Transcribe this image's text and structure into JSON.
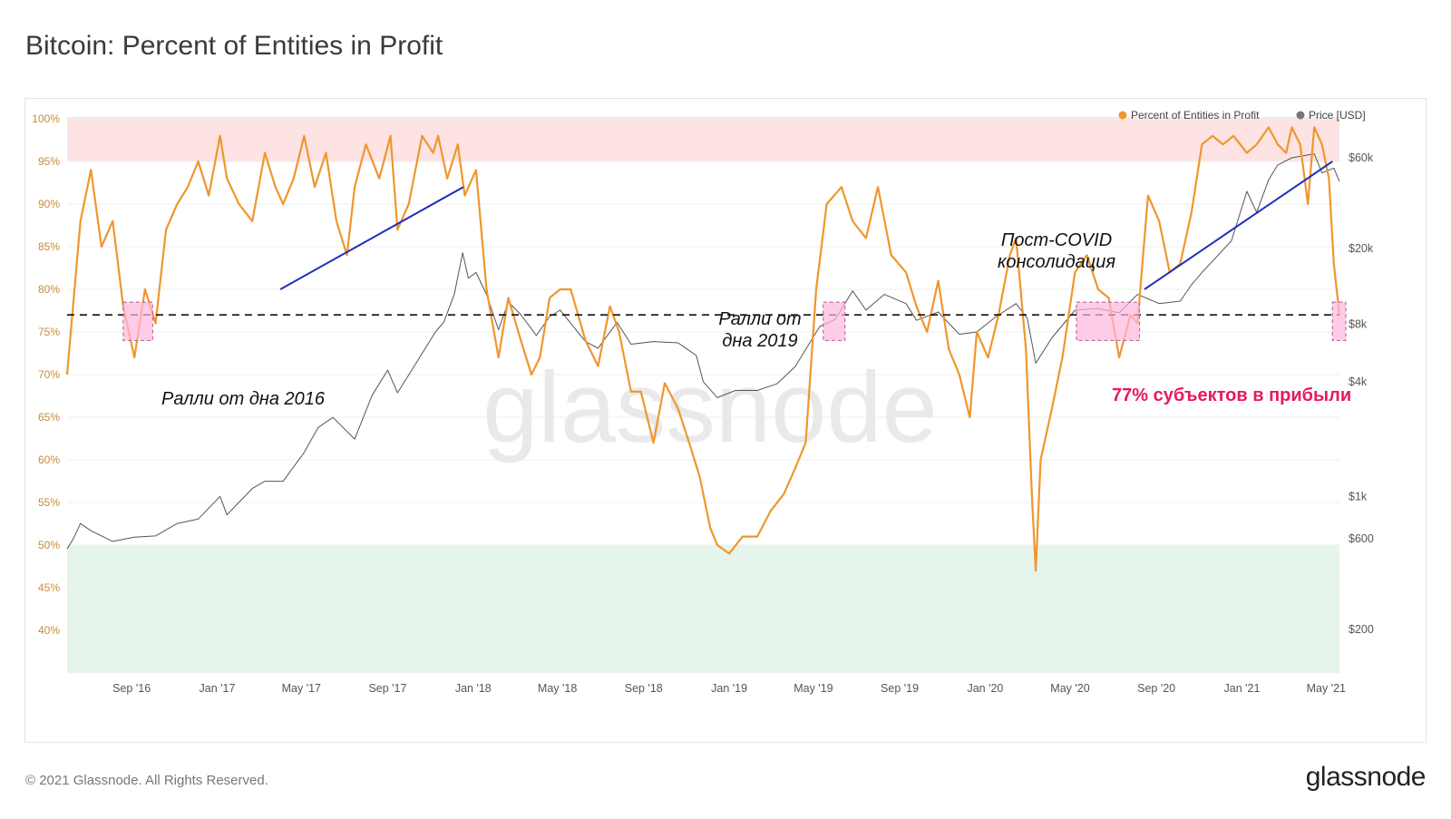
{
  "header": {
    "title": "Bitcoin: Percent of Entities in Profit"
  },
  "footer": {
    "copyright": "© 2021 Glassnode. All Rights Reserved.",
    "brand": "glassnode"
  },
  "watermark": "glassnode",
  "colors": {
    "profit_line": "#f0962d",
    "price_line": "#555555",
    "upper_zone": "#fde3e3",
    "lower_zone": "#e6f5ec",
    "trend_line": "#1f2fb8",
    "highlight_box": "#ffb6de",
    "callout_text": "#e8195a",
    "left_axis_text": "#c98a3c"
  },
  "chart_data": {
    "type": "line",
    "title": "Bitcoin: Percent of Entities in Profit",
    "legend": {
      "placement": "top-right",
      "items": [
        "Percent of Entities in Profit",
        "Price [USD]"
      ]
    },
    "x_ticks": [
      "Sep '16",
      "Jan '17",
      "May '17",
      "Sep '17",
      "Jan '18",
      "May '18",
      "Sep '18",
      "Jan '19",
      "May '19",
      "Sep '19",
      "Jan '20",
      "May '20",
      "Sep '20",
      "Jan '21",
      "May '21"
    ],
    "x_range": [
      "2016-06-01",
      "2021-05-20"
    ],
    "y_left": {
      "range": [
        40,
        100
      ],
      "ticks": [
        "40%",
        "45%",
        "50%",
        "55%",
        "60%",
        "65%",
        "70%",
        "75%",
        "80%",
        "85%",
        "90%",
        "95%",
        "100%"
      ]
    },
    "y_right": {
      "scale": "log",
      "ticks": [
        "$200",
        "$600",
        "$1k",
        "$4k",
        "$8k",
        "$20k",
        "$60k"
      ],
      "tick_values": [
        200,
        600,
        1000,
        4000,
        8000,
        20000,
        60000
      ]
    },
    "zones": {
      "upper_threshold": 95,
      "lower_threshold": 50
    },
    "reference_line": {
      "value": 77,
      "style": "dashed"
    },
    "series": [
      {
        "name": "Percent of Entities in Profit",
        "axis": "left",
        "x": [
          "2016-06-01",
          "2016-06-20",
          "2016-07-05",
          "2016-07-20",
          "2016-08-05",
          "2016-08-20",
          "2016-09-05",
          "2016-09-20",
          "2016-10-05",
          "2016-10-20",
          "2016-11-05",
          "2016-11-20",
          "2016-12-05",
          "2016-12-20",
          "2017-01-05",
          "2017-01-15",
          "2017-02-01",
          "2017-02-20",
          "2017-03-10",
          "2017-03-25",
          "2017-04-05",
          "2017-04-20",
          "2017-05-05",
          "2017-05-20",
          "2017-06-05",
          "2017-06-20",
          "2017-07-05",
          "2017-07-16",
          "2017-08-01",
          "2017-08-20",
          "2017-09-05",
          "2017-09-15",
          "2017-10-01",
          "2017-10-20",
          "2017-11-05",
          "2017-11-12",
          "2017-11-25",
          "2017-12-10",
          "2017-12-20",
          "2018-01-05",
          "2018-01-20",
          "2018-02-06",
          "2018-02-20",
          "2018-03-10",
          "2018-03-25",
          "2018-04-06",
          "2018-04-20",
          "2018-05-05",
          "2018-05-20",
          "2018-06-10",
          "2018-06-28",
          "2018-07-15",
          "2018-07-28",
          "2018-08-14",
          "2018-08-28",
          "2018-09-15",
          "2018-10-01",
          "2018-10-20",
          "2018-11-05",
          "2018-11-20",
          "2018-12-05",
          "2018-12-15",
          "2019-01-01",
          "2019-01-20",
          "2019-02-10",
          "2019-03-01",
          "2019-03-20",
          "2019-04-05",
          "2019-04-20",
          "2019-05-05",
          "2019-05-20",
          "2019-06-10",
          "2019-06-26",
          "2019-07-15",
          "2019-08-01",
          "2019-08-20",
          "2019-09-10",
          "2019-09-25",
          "2019-10-10",
          "2019-10-26",
          "2019-11-10",
          "2019-11-25",
          "2019-12-10",
          "2019-12-20",
          "2020-01-05",
          "2020-01-20",
          "2020-02-05",
          "2020-02-14",
          "2020-02-28",
          "2020-03-08",
          "2020-03-13",
          "2020-03-20",
          "2020-04-05",
          "2020-04-20",
          "2020-05-08",
          "2020-05-25",
          "2020-06-10",
          "2020-06-25",
          "2020-07-10",
          "2020-07-26",
          "2020-08-05",
          "2020-08-20",
          "2020-09-05",
          "2020-09-20",
          "2020-10-05",
          "2020-10-21",
          "2020-11-05",
          "2020-11-20",
          "2020-12-05",
          "2020-12-20",
          "2021-01-08",
          "2021-01-22",
          "2021-02-08",
          "2021-02-21",
          "2021-03-05",
          "2021-03-13",
          "2021-03-25",
          "2021-04-05",
          "2021-04-14",
          "2021-04-25",
          "2021-05-05",
          "2021-05-12",
          "2021-05-20"
        ],
        "values": [
          70,
          88,
          94,
          85,
          88,
          78,
          72,
          80,
          76,
          87,
          90,
          92,
          95,
          91,
          98,
          93,
          90,
          88,
          96,
          92,
          90,
          93,
          98,
          92,
          96,
          88,
          84,
          92,
          97,
          93,
          98,
          87,
          90,
          98,
          96,
          98,
          93,
          97,
          91,
          94,
          80,
          72,
          79,
          74,
          70,
          72,
          79,
          80,
          80,
          74,
          71,
          78,
          75,
          68,
          68,
          62,
          69,
          66,
          62,
          58,
          52,
          50,
          49,
          51,
          51,
          54,
          56,
          59,
          62,
          80,
          90,
          92,
          88,
          86,
          92,
          84,
          82,
          78,
          75,
          81,
          73,
          70,
          65,
          75,
          72,
          77,
          84,
          86,
          73,
          55,
          47,
          60,
          66,
          72,
          82,
          84,
          80,
          79,
          72,
          77,
          76,
          91,
          88,
          82,
          83,
          89,
          97,
          98,
          97,
          98,
          96,
          97,
          99,
          97,
          96,
          99,
          97,
          90,
          99,
          97,
          93,
          83,
          77
        ]
      },
      {
        "name": "Price [USD]",
        "axis": "right",
        "x": [
          "2016-06-01",
          "2016-06-10",
          "2016-06-20",
          "2016-07-05",
          "2016-08-05",
          "2016-09-05",
          "2016-10-05",
          "2016-11-05",
          "2016-12-05",
          "2017-01-05",
          "2017-01-15",
          "2017-02-20",
          "2017-03-10",
          "2017-04-05",
          "2017-05-05",
          "2017-05-25",
          "2017-06-15",
          "2017-07-16",
          "2017-08-10",
          "2017-09-01",
          "2017-09-15",
          "2017-10-10",
          "2017-11-08",
          "2017-11-20",
          "2017-12-05",
          "2017-12-17",
          "2017-12-25",
          "2018-01-05",
          "2018-01-20",
          "2018-02-06",
          "2018-02-20",
          "2018-03-10",
          "2018-04-01",
          "2018-04-20",
          "2018-05-05",
          "2018-06-10",
          "2018-06-28",
          "2018-07-25",
          "2018-08-14",
          "2018-09-15",
          "2018-10-20",
          "2018-11-15",
          "2018-11-25",
          "2018-12-15",
          "2019-01-10",
          "2019-02-10",
          "2019-03-10",
          "2019-04-05",
          "2019-05-10",
          "2019-06-01",
          "2019-06-26",
          "2019-07-15",
          "2019-08-10",
          "2019-09-10",
          "2019-09-25",
          "2019-10-26",
          "2019-11-25",
          "2019-12-20",
          "2020-01-15",
          "2020-02-14",
          "2020-03-01",
          "2020-03-13",
          "2020-04-05",
          "2020-05-08",
          "2020-06-10",
          "2020-07-10",
          "2020-08-05",
          "2020-09-05",
          "2020-10-05",
          "2020-10-21",
          "2020-11-05",
          "2020-11-25",
          "2020-12-17",
          "2021-01-08",
          "2021-01-22",
          "2021-02-08",
          "2021-02-21",
          "2021-03-13",
          "2021-04-14",
          "2021-04-25",
          "2021-05-12",
          "2021-05-20"
        ],
        "values": [
          530,
          600,
          720,
          660,
          580,
          610,
          620,
          720,
          760,
          1000,
          800,
          1100,
          1200,
          1200,
          1700,
          2300,
          2600,
          2000,
          3400,
          4600,
          3500,
          4900,
          7300,
          8200,
          11500,
          19000,
          14000,
          15000,
          11500,
          7500,
          10500,
          9000,
          7000,
          8800,
          9500,
          6500,
          6000,
          8200,
          6300,
          6500,
          6400,
          5500,
          4000,
          3300,
          3600,
          3600,
          3900,
          4800,
          7800,
          8500,
          12000,
          9500,
          11500,
          10300,
          8400,
          9300,
          7100,
          7300,
          8700,
          10300,
          8600,
          5000,
          6800,
          9500,
          9700,
          9200,
          11500,
          10300,
          10600,
          12900,
          15000,
          18000,
          22000,
          40000,
          31000,
          46000,
          55000,
          60000,
          63000,
          50000,
          53000,
          45000
        ]
      }
    ],
    "trend_lines": [
      {
        "from": [
          "2017-04-01",
          80
        ],
        "to": [
          "2017-12-18",
          92
        ]
      },
      {
        "from": [
          "2020-08-15",
          80
        ],
        "to": [
          "2021-05-10",
          95
        ]
      }
    ],
    "highlight_boxes": [
      {
        "from": "2016-08-20",
        "to": "2016-10-01",
        "y_range": [
          74,
          78.5
        ]
      },
      {
        "from": "2019-05-15",
        "to": "2019-06-15",
        "y_range": [
          74,
          78.5
        ]
      },
      {
        "from": "2020-05-10",
        "to": "2020-08-08",
        "y_range": [
          74,
          78.5
        ]
      },
      {
        "from": "2021-05-10",
        "to": "2021-06-10",
        "y_range": [
          74,
          78.5
        ]
      }
    ],
    "annotations": [
      {
        "id": "rally_2016",
        "text": "Ралли от дна 2016"
      },
      {
        "id": "rally_2019_l1",
        "text": "Ралли от"
      },
      {
        "id": "rally_2019_l2",
        "text": "дна 2019"
      },
      {
        "id": "post_covid_l1",
        "text": "Пост-COVID"
      },
      {
        "id": "post_covid_l2",
        "text": "консолидация"
      },
      {
        "id": "callout",
        "text": "77% субъектов в прибыли"
      }
    ]
  }
}
